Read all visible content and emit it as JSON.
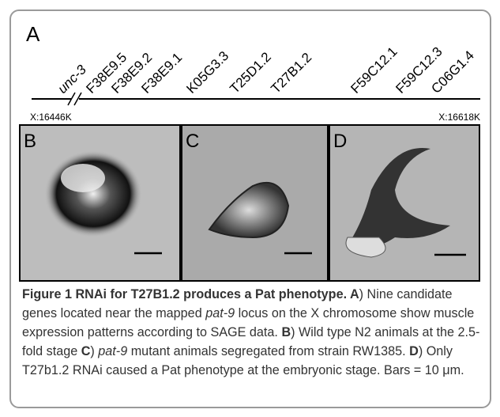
{
  "panel_a": {
    "label": "A",
    "genes": [
      {
        "name": "unc-3",
        "italic": true
      },
      {
        "name": "F38E9.5",
        "italic": false
      },
      {
        "name": "F38E9.2",
        "italic": false
      },
      {
        "name": "F38E9.1",
        "italic": false
      },
      {
        "name": "K05G3.3",
        "italic": false
      },
      {
        "name": "T25D1.2",
        "italic": false
      },
      {
        "name": "T27B1.2",
        "italic": false
      },
      {
        "name": "F59C12.1",
        "italic": false
      },
      {
        "name": "F59C12.3",
        "italic": false
      },
      {
        "name": "C06G1.4",
        "italic": false
      }
    ],
    "left_coord": "X:16446K",
    "right_coord": "X:16618K"
  },
  "panels": [
    {
      "label": "B"
    },
    {
      "label": "C"
    },
    {
      "label": "D"
    }
  ],
  "caption": [
    {
      "text": "Figure 1 RNAi for T27B1.2 produces a Pat phenotype.",
      "style": "bold"
    },
    {
      "text": " A",
      "style": "bold"
    },
    {
      "text": ") Nine candidate genes located near the mapped ",
      "style": "normal"
    },
    {
      "text": "pat-9",
      "style": "italic"
    },
    {
      "text": " locus on the X chromosome show muscle expression patterns according to SAGE data. ",
      "style": "normal"
    },
    {
      "text": "B",
      "style": "bold"
    },
    {
      "text": ") Wild type N2 animals at the 2.5-fold stage ",
      "style": "normal"
    },
    {
      "text": "C",
      "style": "bold"
    },
    {
      "text": ") ",
      "style": "normal"
    },
    {
      "text": "pat-9",
      "style": "italic"
    },
    {
      "text": " mutant animals segregated from strain RW1385. ",
      "style": "normal"
    },
    {
      "text": "D",
      "style": "bold"
    },
    {
      "text": ") Only T27b1.2 RNAi caused a Pat phenotype at the embryonic stage. Bars = 10 μm.",
      "style": "normal"
    }
  ]
}
